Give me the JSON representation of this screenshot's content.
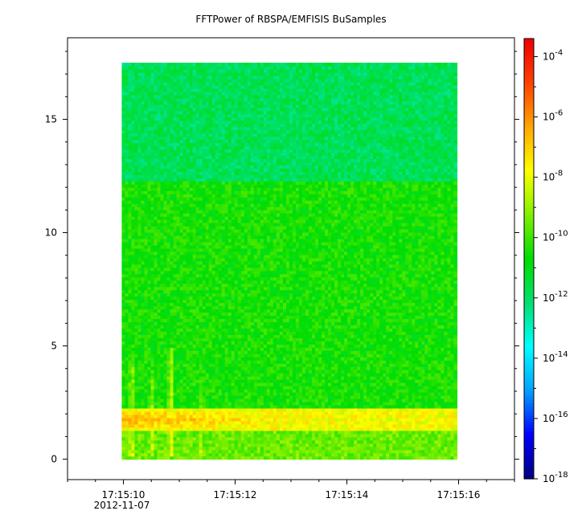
{
  "chart_data": {
    "type": "heatmap",
    "title": "FFTPower of RBSPA/EMFISIS  BuSamples",
    "xlabel": "",
    "ylabel": "",
    "x_ticks": [
      {
        "value": 10,
        "label": "17:15:10",
        "sublabel": "2012-11-07"
      },
      {
        "value": 12,
        "label": "17:15:12",
        "sublabel": ""
      },
      {
        "value": 14,
        "label": "17:15:14",
        "sublabel": ""
      },
      {
        "value": 16,
        "label": "17:15:16",
        "sublabel": ""
      }
    ],
    "xlim": [
      9.0,
      17.0
    ],
    "x_data_range": [
      9.97,
      15.97
    ],
    "y_ticks": [
      0,
      5,
      10,
      15
    ],
    "ylim": [
      -0.9,
      18.6
    ],
    "y_data_range": [
      0,
      17.5
    ],
    "colorbar": {
      "scale": "log",
      "range_log10": [
        -18,
        -3.4
      ],
      "ticks": [
        {
          "exp": -4,
          "label": "-4"
        },
        {
          "exp": -6,
          "label": "-6"
        },
        {
          "exp": -8,
          "label": "-8"
        },
        {
          "exp": -10,
          "label": "-10"
        },
        {
          "exp": -12,
          "label": "-12"
        },
        {
          "exp": -14,
          "label": "-14"
        },
        {
          "exp": -16,
          "label": "-16"
        },
        {
          "exp": -18,
          "label": "-18"
        }
      ],
      "colormap": [
        "#00007f",
        "#0000ff",
        "#00a0ff",
        "#00ffff",
        "#00e070",
        "#00dd00",
        "#80f000",
        "#ffff00",
        "#ffa500",
        "#ff4000",
        "#ee0000"
      ]
    },
    "features": {
      "upper_band": {
        "y_range": [
          12.3,
          17.5
        ],
        "log10_power": -11.8
      },
      "middle_band": {
        "y_range": [
          2.2,
          12.3
        ],
        "log10_power": -10.5
      },
      "low_band": {
        "y_range": [
          1.2,
          2.2
        ],
        "log10_power": -7.8
      },
      "lower_strip": {
        "y_range": [
          0,
          1.2
        ],
        "log10_power": -9.5
      },
      "enhanced_band_start": {
        "x": 9.97,
        "y": 1.8,
        "log10_power": -6.5
      },
      "enhanced_band_end": {
        "x": 15.97,
        "y": 1.6,
        "log10_power": -8.8
      },
      "bursts": [
        {
          "t": 10.15,
          "y_peak": 4.5,
          "log10_power": -7.5
        },
        {
          "t": 10.5,
          "y_peak": 4.0,
          "log10_power": -7.8
        },
        {
          "t": 10.85,
          "y_peak": 4.9,
          "log10_power": -7.3
        },
        {
          "t": 11.4,
          "y_peak": 3.7,
          "log10_power": -8.0
        }
      ]
    }
  }
}
